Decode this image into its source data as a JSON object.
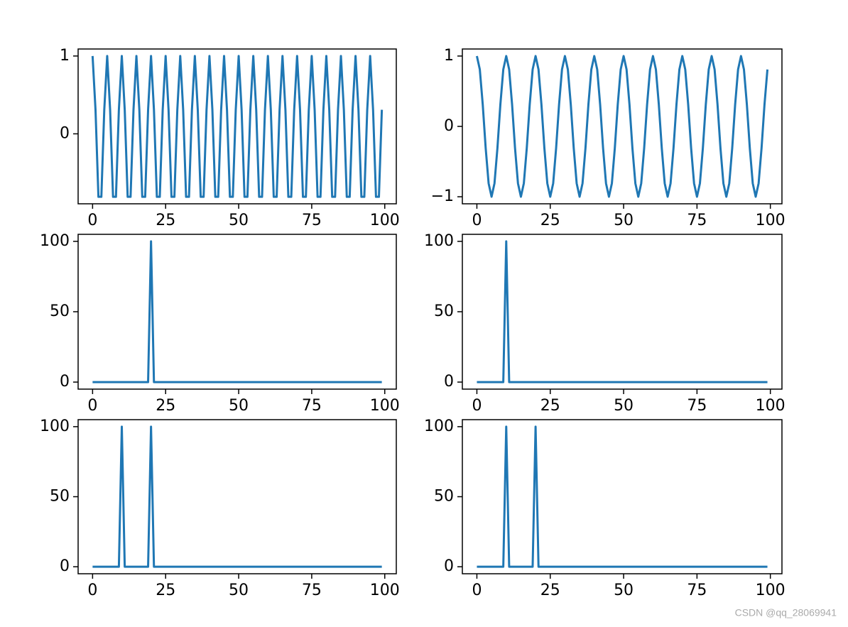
{
  "chart_data": [
    {
      "type": "line",
      "color": "#1f77b4",
      "x": [
        0,
        1,
        2,
        3,
        4,
        5,
        6,
        7,
        8,
        9,
        10,
        11,
        12,
        13,
        14,
        15,
        16,
        17,
        18,
        19,
        20,
        21,
        22,
        23,
        24,
        25,
        26,
        27,
        28,
        29,
        30,
        31,
        32,
        33,
        34,
        35,
        36,
        37,
        38,
        39,
        40,
        41,
        42,
        43,
        44,
        45,
        46,
        47,
        48,
        49,
        50,
        51,
        52,
        53,
        54,
        55,
        56,
        57,
        58,
        59,
        60,
        61,
        62,
        63,
        64,
        65,
        66,
        67,
        68,
        69,
        70,
        71,
        72,
        73,
        74,
        75,
        76,
        77,
        78,
        79,
        80,
        81,
        82,
        83,
        84,
        85,
        86,
        87,
        88,
        89,
        90,
        91,
        92,
        93,
        94,
        95,
        96,
        97,
        98,
        99
      ],
      "values": [
        1,
        0.309,
        -0.809,
        -0.809,
        0.309,
        1,
        0.309,
        -0.809,
        -0.809,
        0.309,
        1,
        0.309,
        -0.809,
        -0.809,
        0.309,
        1,
        0.309,
        -0.809,
        -0.809,
        0.309,
        1,
        0.309,
        -0.809,
        -0.809,
        0.309,
        1,
        0.309,
        -0.809,
        -0.809,
        0.309,
        1,
        0.309,
        -0.809,
        -0.809,
        0.309,
        1,
        0.309,
        -0.809,
        -0.809,
        0.309,
        1,
        0.309,
        -0.809,
        -0.809,
        0.309,
        1,
        0.309,
        -0.809,
        -0.809,
        0.309,
        1,
        0.309,
        -0.809,
        -0.809,
        0.309,
        1,
        0.309,
        -0.809,
        -0.809,
        0.309,
        1,
        0.309,
        -0.809,
        -0.809,
        0.309,
        1,
        0.309,
        -0.809,
        -0.809,
        0.309,
        1,
        0.309,
        -0.809,
        -0.809,
        0.309,
        1,
        0.309,
        -0.809,
        -0.809,
        0.309,
        1,
        0.309,
        -0.809,
        -0.809,
        0.309,
        1,
        0.309,
        -0.809,
        -0.809,
        0.309,
        1,
        0.309,
        -0.809,
        -0.809,
        0.309,
        1,
        0.309,
        -0.809,
        -0.809,
        0.309
      ],
      "xlim": [
        -4.95,
        103.95
      ],
      "xticks": [
        0,
        25,
        50,
        75,
        100
      ],
      "ylim": [
        -0.899,
        1.09
      ],
      "yticks": [
        0,
        1
      ]
    },
    {
      "type": "line",
      "color": "#1f77b4",
      "x": [
        0,
        1,
        2,
        3,
        4,
        5,
        6,
        7,
        8,
        9,
        10,
        11,
        12,
        13,
        14,
        15,
        16,
        17,
        18,
        19,
        20,
        21,
        22,
        23,
        24,
        25,
        26,
        27,
        28,
        29,
        30,
        31,
        32,
        33,
        34,
        35,
        36,
        37,
        38,
        39,
        40,
        41,
        42,
        43,
        44,
        45,
        46,
        47,
        48,
        49,
        50,
        51,
        52,
        53,
        54,
        55,
        56,
        57,
        58,
        59,
        60,
        61,
        62,
        63,
        64,
        65,
        66,
        67,
        68,
        69,
        70,
        71,
        72,
        73,
        74,
        75,
        76,
        77,
        78,
        79,
        80,
        81,
        82,
        83,
        84,
        85,
        86,
        87,
        88,
        89,
        90,
        91,
        92,
        93,
        94,
        95,
        96,
        97,
        98,
        99
      ],
      "values": [
        1,
        0.809,
        0.309,
        -0.309,
        -0.809,
        -1,
        -0.809,
        -0.309,
        0.309,
        0.809,
        1,
        0.809,
        0.309,
        -0.309,
        -0.809,
        -1,
        -0.809,
        -0.309,
        0.309,
        0.809,
        1,
        0.809,
        0.309,
        -0.309,
        -0.809,
        -1,
        -0.809,
        -0.309,
        0.309,
        0.809,
        1,
        0.809,
        0.309,
        -0.309,
        -0.809,
        -1,
        -0.809,
        -0.309,
        0.309,
        0.809,
        1,
        0.809,
        0.309,
        -0.309,
        -0.809,
        -1,
        -0.809,
        -0.309,
        0.309,
        0.809,
        1,
        0.809,
        0.309,
        -0.309,
        -0.809,
        -1,
        -0.809,
        -0.309,
        0.309,
        0.809,
        1,
        0.809,
        0.309,
        -0.309,
        -0.809,
        -1,
        -0.809,
        -0.309,
        0.309,
        0.809,
        1,
        0.809,
        0.309,
        -0.309,
        -0.809,
        -1,
        -0.809,
        -0.309,
        0.309,
        0.809,
        1,
        0.809,
        0.309,
        -0.309,
        -0.809,
        -1,
        -0.809,
        -0.309,
        0.309,
        0.809,
        1,
        0.809,
        0.309,
        -0.309,
        -0.809,
        -1,
        -0.809,
        -0.309,
        0.309,
        0.809
      ],
      "xlim": [
        -4.95,
        103.95
      ],
      "xticks": [
        0,
        25,
        50,
        75,
        100
      ],
      "ylim": [
        -1.1,
        1.1
      ],
      "yticks": [
        {
          "value": -1,
          "label": "−1"
        },
        0,
        1
      ]
    },
    {
      "type": "line",
      "color": "#1f77b4",
      "x": [
        0,
        1,
        2,
        3,
        4,
        5,
        6,
        7,
        8,
        9,
        10,
        11,
        12,
        13,
        14,
        15,
        16,
        17,
        18,
        19,
        20,
        21,
        22,
        23,
        24,
        25,
        26,
        27,
        28,
        29,
        30,
        31,
        32,
        33,
        34,
        35,
        36,
        37,
        38,
        39,
        40,
        41,
        42,
        43,
        44,
        45,
        46,
        47,
        48,
        49,
        50,
        51,
        52,
        53,
        54,
        55,
        56,
        57,
        58,
        59,
        60,
        61,
        62,
        63,
        64,
        65,
        66,
        67,
        68,
        69,
        70,
        71,
        72,
        73,
        74,
        75,
        76,
        77,
        78,
        79,
        80,
        81,
        82,
        83,
        84,
        85,
        86,
        87,
        88,
        89,
        90,
        91,
        92,
        93,
        94,
        95,
        96,
        97,
        98,
        99
      ],
      "values": [
        0,
        0,
        0,
        0,
        0,
        0,
        0,
        0,
        0,
        0,
        0,
        0,
        0,
        0,
        0,
        0,
        0,
        0,
        0,
        0,
        100,
        0,
        0,
        0,
        0,
        0,
        0,
        0,
        0,
        0,
        0,
        0,
        0,
        0,
        0,
        0,
        0,
        0,
        0,
        0,
        0,
        0,
        0,
        0,
        0,
        0,
        0,
        0,
        0,
        0,
        0,
        0,
        0,
        0,
        0,
        0,
        0,
        0,
        0,
        0,
        0,
        0,
        0,
        0,
        0,
        0,
        0,
        0,
        0,
        0,
        0,
        0,
        0,
        0,
        0,
        0,
        0,
        0,
        0,
        0,
        0,
        0,
        0,
        0,
        0,
        0,
        0,
        0,
        0,
        0,
        0,
        0,
        0,
        0,
        0,
        0,
        0,
        0,
        0,
        0
      ],
      "xlim": [
        -4.95,
        103.95
      ],
      "xticks": [
        0,
        25,
        50,
        75,
        100
      ],
      "ylim": [
        -5,
        105
      ],
      "yticks": [
        0,
        50,
        100
      ]
    },
    {
      "type": "line",
      "color": "#1f77b4",
      "x": [
        0,
        1,
        2,
        3,
        4,
        5,
        6,
        7,
        8,
        9,
        10,
        11,
        12,
        13,
        14,
        15,
        16,
        17,
        18,
        19,
        20,
        21,
        22,
        23,
        24,
        25,
        26,
        27,
        28,
        29,
        30,
        31,
        32,
        33,
        34,
        35,
        36,
        37,
        38,
        39,
        40,
        41,
        42,
        43,
        44,
        45,
        46,
        47,
        48,
        49,
        50,
        51,
        52,
        53,
        54,
        55,
        56,
        57,
        58,
        59,
        60,
        61,
        62,
        63,
        64,
        65,
        66,
        67,
        68,
        69,
        70,
        71,
        72,
        73,
        74,
        75,
        76,
        77,
        78,
        79,
        80,
        81,
        82,
        83,
        84,
        85,
        86,
        87,
        88,
        89,
        90,
        91,
        92,
        93,
        94,
        95,
        96,
        97,
        98,
        99
      ],
      "values": [
        0,
        0,
        0,
        0,
        0,
        0,
        0,
        0,
        0,
        0,
        100,
        0,
        0,
        0,
        0,
        0,
        0,
        0,
        0,
        0,
        0,
        0,
        0,
        0,
        0,
        0,
        0,
        0,
        0,
        0,
        0,
        0,
        0,
        0,
        0,
        0,
        0,
        0,
        0,
        0,
        0,
        0,
        0,
        0,
        0,
        0,
        0,
        0,
        0,
        0,
        0,
        0,
        0,
        0,
        0,
        0,
        0,
        0,
        0,
        0,
        0,
        0,
        0,
        0,
        0,
        0,
        0,
        0,
        0,
        0,
        0,
        0,
        0,
        0,
        0,
        0,
        0,
        0,
        0,
        0,
        0,
        0,
        0,
        0,
        0,
        0,
        0,
        0,
        0,
        0,
        0,
        0,
        0,
        0,
        0,
        0,
        0,
        0,
        0,
        0
      ],
      "xlim": [
        -4.95,
        103.95
      ],
      "xticks": [
        0,
        25,
        50,
        75,
        100
      ],
      "ylim": [
        -5,
        105
      ],
      "yticks": [
        0,
        50,
        100
      ]
    },
    {
      "type": "line",
      "color": "#1f77b4",
      "x": [
        0,
        1,
        2,
        3,
        4,
        5,
        6,
        7,
        8,
        9,
        10,
        11,
        12,
        13,
        14,
        15,
        16,
        17,
        18,
        19,
        20,
        21,
        22,
        23,
        24,
        25,
        26,
        27,
        28,
        29,
        30,
        31,
        32,
        33,
        34,
        35,
        36,
        37,
        38,
        39,
        40,
        41,
        42,
        43,
        44,
        45,
        46,
        47,
        48,
        49,
        50,
        51,
        52,
        53,
        54,
        55,
        56,
        57,
        58,
        59,
        60,
        61,
        62,
        63,
        64,
        65,
        66,
        67,
        68,
        69,
        70,
        71,
        72,
        73,
        74,
        75,
        76,
        77,
        78,
        79,
        80,
        81,
        82,
        83,
        84,
        85,
        86,
        87,
        88,
        89,
        90,
        91,
        92,
        93,
        94,
        95,
        96,
        97,
        98,
        99
      ],
      "values": [
        0,
        0,
        0,
        0,
        0,
        0,
        0,
        0,
        0,
        0,
        100,
        0,
        0,
        0,
        0,
        0,
        0,
        0,
        0,
        0,
        100,
        0,
        0,
        0,
        0,
        0,
        0,
        0,
        0,
        0,
        0,
        0,
        0,
        0,
        0,
        0,
        0,
        0,
        0,
        0,
        0,
        0,
        0,
        0,
        0,
        0,
        0,
        0,
        0,
        0,
        0,
        0,
        0,
        0,
        0,
        0,
        0,
        0,
        0,
        0,
        0,
        0,
        0,
        0,
        0,
        0,
        0,
        0,
        0,
        0,
        0,
        0,
        0,
        0,
        0,
        0,
        0,
        0,
        0,
        0,
        0,
        0,
        0,
        0,
        0,
        0,
        0,
        0,
        0,
        0,
        0,
        0,
        0,
        0,
        0,
        0,
        0,
        0,
        0,
        0
      ],
      "xlim": [
        -4.95,
        103.95
      ],
      "xticks": [
        0,
        25,
        50,
        75,
        100
      ],
      "ylim": [
        -5,
        105
      ],
      "yticks": [
        0,
        50,
        100
      ]
    },
    {
      "type": "line",
      "color": "#1f77b4",
      "x": [
        0,
        1,
        2,
        3,
        4,
        5,
        6,
        7,
        8,
        9,
        10,
        11,
        12,
        13,
        14,
        15,
        16,
        17,
        18,
        19,
        20,
        21,
        22,
        23,
        24,
        25,
        26,
        27,
        28,
        29,
        30,
        31,
        32,
        33,
        34,
        35,
        36,
        37,
        38,
        39,
        40,
        41,
        42,
        43,
        44,
        45,
        46,
        47,
        48,
        49,
        50,
        51,
        52,
        53,
        54,
        55,
        56,
        57,
        58,
        59,
        60,
        61,
        62,
        63,
        64,
        65,
        66,
        67,
        68,
        69,
        70,
        71,
        72,
        73,
        74,
        75,
        76,
        77,
        78,
        79,
        80,
        81,
        82,
        83,
        84,
        85,
        86,
        87,
        88,
        89,
        90,
        91,
        92,
        93,
        94,
        95,
        96,
        97,
        98,
        99
      ],
      "values": [
        0,
        0,
        0,
        0,
        0,
        0,
        0,
        0,
        0,
        0,
        100,
        0,
        0,
        0,
        0,
        0,
        0,
        0,
        0,
        0,
        100,
        0,
        0,
        0,
        0,
        0,
        0,
        0,
        0,
        0,
        0,
        0,
        0,
        0,
        0,
        0,
        0,
        0,
        0,
        0,
        0,
        0,
        0,
        0,
        0,
        0,
        0,
        0,
        0,
        0,
        0,
        0,
        0,
        0,
        0,
        0,
        0,
        0,
        0,
        0,
        0,
        0,
        0,
        0,
        0,
        0,
        0,
        0,
        0,
        0,
        0,
        0,
        0,
        0,
        0,
        0,
        0,
        0,
        0,
        0,
        0,
        0,
        0,
        0,
        0,
        0,
        0,
        0,
        0,
        0,
        0,
        0,
        0,
        0,
        0,
        0,
        0,
        0,
        0,
        0
      ],
      "xlim": [
        -4.95,
        103.95
      ],
      "xticks": [
        0,
        25,
        50,
        75,
        100
      ],
      "ylim": [
        -5,
        105
      ],
      "yticks": [
        0,
        50,
        100
      ]
    }
  ],
  "watermark": "CSDN @qq_28069941"
}
